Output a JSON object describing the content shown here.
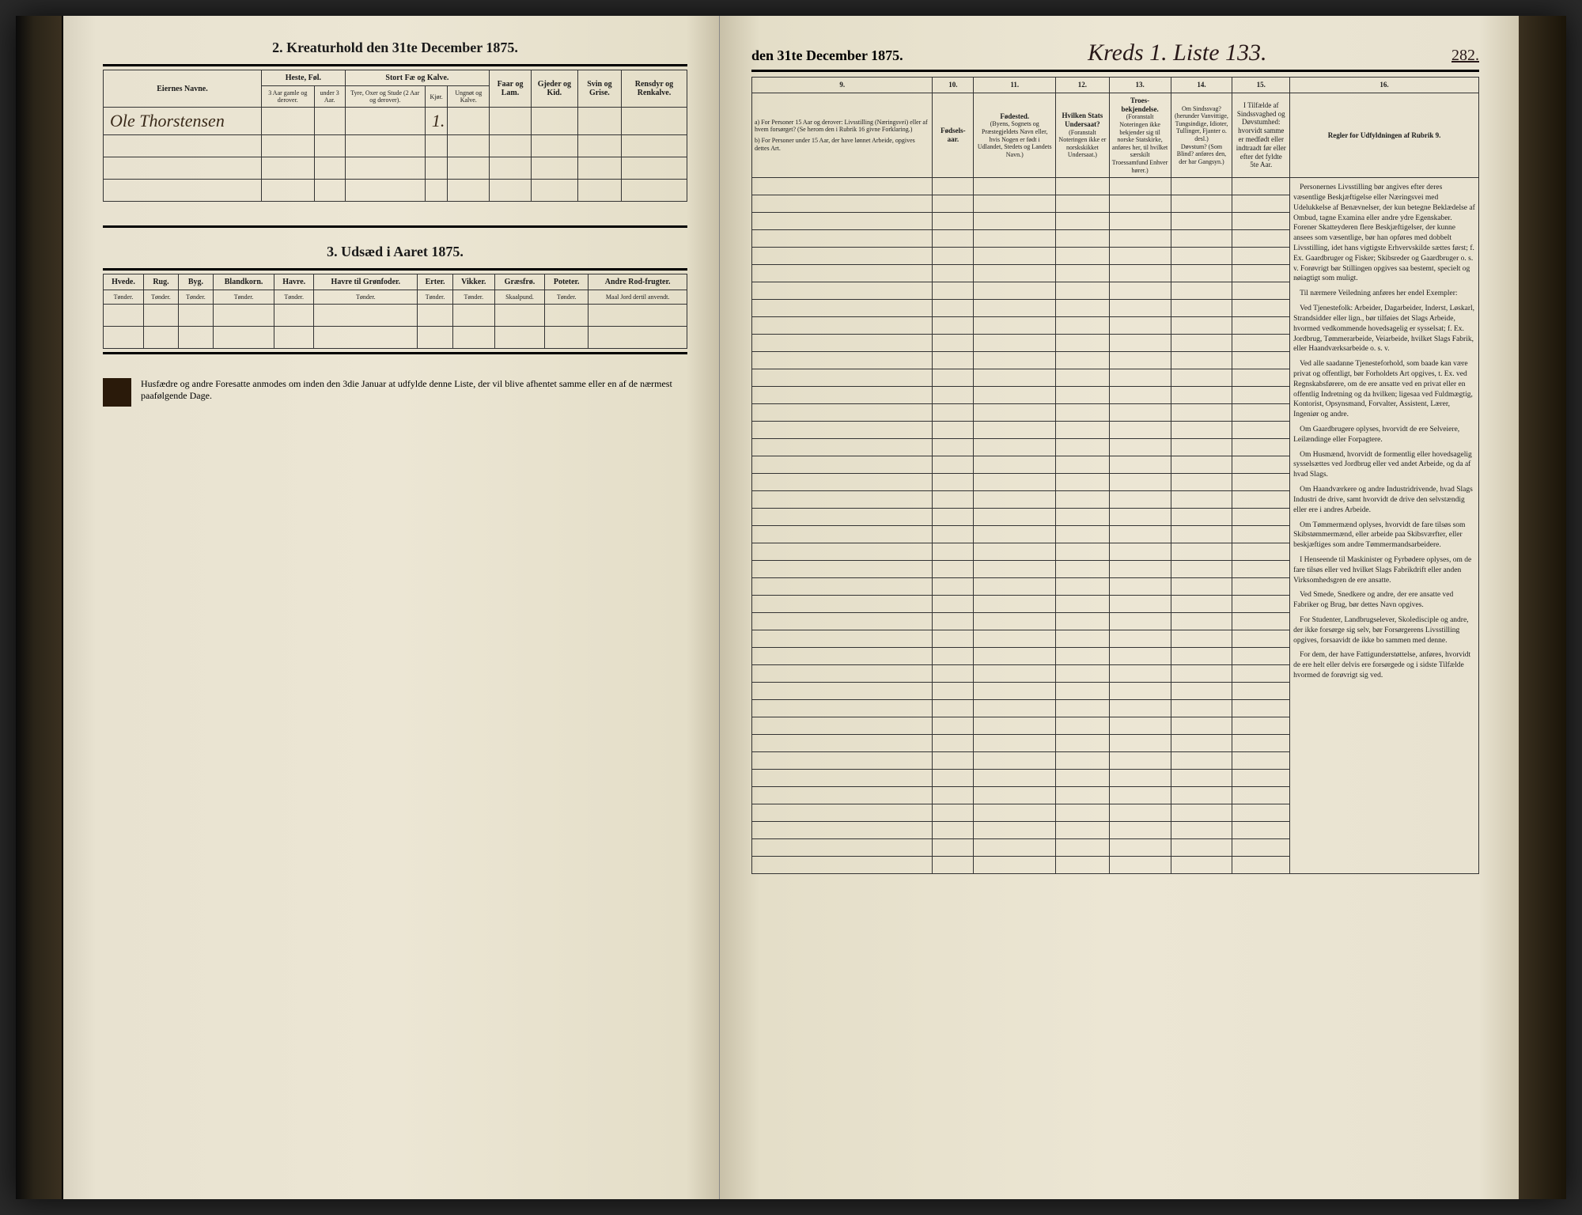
{
  "leftPage": {
    "section2": {
      "title": "2.  Kreaturhold den 31te December 1875.",
      "headers": {
        "eier": "Eiernes Navne.",
        "heste": "Heste, Føl.",
        "heste_sub1": "3 Aar gamle og derover.",
        "heste_sub2": "under 3 Aar.",
        "stort": "Stort Fæ og Kalve.",
        "stort_sub1": "Tyre, Oxer og Stude (2 Aar og derover).",
        "stort_sub2": "Kjør.",
        "stort_sub3": "Ungnøt og Kalve.",
        "faar": "Faar og Lam.",
        "gjeder": "Gjeder og Kid.",
        "svin": "Svin og Grise.",
        "rens": "Rensdyr og Renkalve."
      },
      "row1": {
        "name": "Ole Thorstensen",
        "kjor": "1."
      }
    },
    "section3": {
      "title": "3.  Udsæd i Aaret 1875.",
      "cols": [
        "Hvede.",
        "Rug.",
        "Byg.",
        "Blandkorn.",
        "Havre.",
        "Havre til Grønfoder.",
        "Erter.",
        "Vikker.",
        "Græsfrø.",
        "Poteter.",
        "Andre Rod-frugter."
      ],
      "unit": "Tønder.",
      "unit_skaal": "Skaalpund.",
      "unit_maal": "Maal Jord dertil anvendt."
    },
    "footer": "Husfædre og andre Foresatte anmodes om inden den 3die Januar at udfylde denne Liste, der vil blive afhentet samme eller en af de nærmest paafølgende Dage."
  },
  "rightPage": {
    "headerTitle": "den 31te December 1875.",
    "script": "Kreds 1. Liste 133.",
    "pageNum": "282.",
    "colNums": [
      "9.",
      "10.",
      "11.",
      "12.",
      "13.",
      "14.",
      "15.",
      "16."
    ],
    "headers": {
      "c9a": "a) For Personer 15 Aar og derover: Livsstilling (Næringsvei) eller af hvem forsørget? (Se herom den i Rubrik 16 givne Forklaring.)",
      "c9b": "b) For Personer under 15 Aar, der have lønnet Arbeide, opgives dettes Art.",
      "c10": "Fødsels-aar.",
      "c11": "Fødested.",
      "c11_sub": "(Byens, Sognets og Præstegjeldets Navn eller, hvis Nogen er født i Udlandet, Stedets og Landets Navn.)",
      "c12": "Hvilken Stats Undersaat?",
      "c12_sub": "(Foranstalt Noteringen ikke er norskskikket Undersaat.)",
      "c13": "Troes-bekjendelse.",
      "c13_sub": "(Foranstalt Noteringen ikke bekjender sig til norske Statskirke, anføres her, til hvilket særskilt Troessamfund Enhver hører.)",
      "c14": "Om Sindssvag? (herunder Vanvittige, Tungsindige, Idioter, Tullinger, Fjanter o. desl.)",
      "c14_sub": "Døvstum? (Som Blind? anføres den, der har Gangsyn.)",
      "c15": "I Tilfælde af Sindssvaghed og Døvstumhed: hvorvidt samme er medfødt eller indtraadt før eller efter det fyldte 5te Aar.",
      "c16": "Regler for Udfyldningen af Rubrik 9."
    },
    "instructions": [
      "Personernes Livsstilling bør angives efter deres væsentlige Beskjæftigelse eller Næringsvei med Udelukkelse af Benævnelser, der kun betegne Beklædelse af Ombud, tagne Examina eller andre ydre Egenskaber. Forener Skatteyderen flere Beskjæftigelser, der kunne ansees som væsentlige, bør han opføres med dobbelt Livsstilling, idet hans vigtigste Erhvervskilde sættes først; f. Ex. Gaardbruger og Fisker; Skibsreder og Gaardbruger o. s. v. Forøvrigt bør Stillingen opgives saa bestemt, specielt og nøiagtigt som muligt.",
      "Til nærmere Veiledning anføres her endel Exempler:",
      "Ved Tjenestefolk: Arbeider, Dagarbeider, Inderst, Løskarl, Strandsidder eller lign., bør tilføies det Slags Arbeide, hvormed vedkommende hovedsagelig er sysselsat; f. Ex. Jordbrug, Tømmerarbeide, Veiarbeide, hvilket Slags Fabrik, eller Haandværksarbeide o. s. v.",
      "Ved alle saadanne Tjenesteforhold, som baade kan være privat og offentligt, bør Forholdets Art opgives, t. Ex. ved Regnskabsførere, om de ere ansatte ved en privat eller en offentlig Indretning og da hvilken; ligesaa ved Fuldmægtig, Kontorist, Opsynsmand, Forvalter, Assistent, Lærer, Ingeniør og andre.",
      "Om Gaardbrugere oplyses, hvorvidt de ere Selveiere, Leilændinge eller Forpagtere.",
      "Om Husmænd, hvorvidt de formentlig eller hovedsagelig sysselsættes ved Jordbrug eller ved andet Arbeide, og da af hvad Slags.",
      "Om Haandværkere og andre Industridrivende, hvad Slags Industri de drive, samt hvorvidt de drive den selvstændig eller ere i andres Arbeide.",
      "Om Tømmermænd oplyses, hvorvidt de fare tilsøs som Skibstømmermænd, eller arbeide paa Skibsværfter, eller beskjæftiges som andre Tømmermandsarbeidere.",
      "I Henseende til Maskinister og Fyrbødere oplyses, om de fare tilsøs eller ved hvilket Slags Fabrikdrift eller anden Virksomhedsgren de ere ansatte.",
      "Ved Smede, Snedkere og andre, der ere ansatte ved Fabriker og Brug, bør dettes Navn opgives.",
      "For Studenter, Landbrugselever, Skoledisciple og andre, der ikke forsørge sig selv, bør Forsørgerens Livsstilling opgives, forsaavidt de ikke bo sammen med denne.",
      "For dem, der have Fattigunderstøttelse, anføres, hvorvidt de ere helt eller delvis ere forsørgede og i sidste Tilfælde hvormed de forøvrigt sig ved."
    ]
  },
  "colors": {
    "ink": "#1a1a1a",
    "handwriting": "#3a2a1a",
    "paper": "#e8e2d0",
    "border": "#333333"
  }
}
